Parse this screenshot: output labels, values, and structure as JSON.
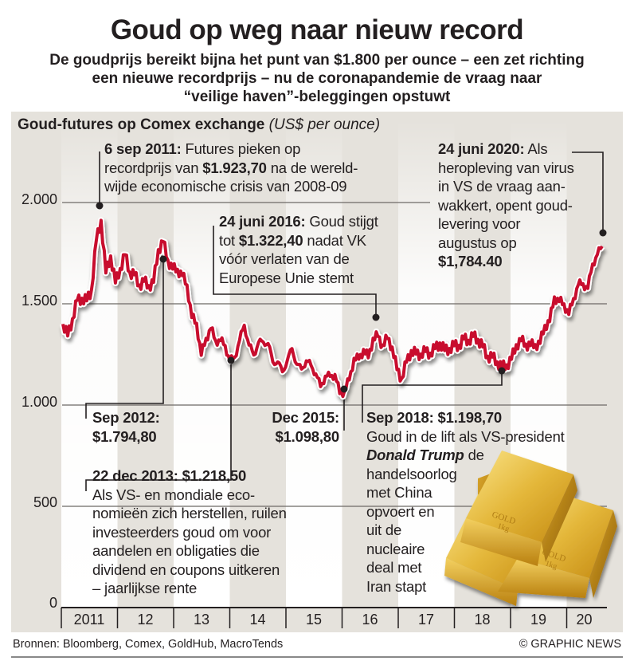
{
  "header": {
    "title": "Goud op weg naar nieuw record",
    "subtitle_lines": [
      "De goudprijs bereikt bijna het punt van $1.800 per ounce – een zet richting",
      "een nieuwe recordprijs – nu de coronapandemie de vraag naar",
      "“veilige haven”-beleggingen opstuwt"
    ]
  },
  "colors": {
    "line": "#c8102e",
    "panel": "#e5e2dc",
    "band": "#ffffff",
    "text": "#231f20"
  },
  "annotations": {
    "peak2011": {
      "bold": "6 sep 2011:",
      "text1": " Futures pieken op",
      "text2a": "recordprijs van ",
      "bold2": "$1.923,70",
      "text2b": " na de wereld-",
      "text3": "wijde economische crisis van 2008-09"
    },
    "brexit2016": {
      "bold": "24 juni 2016:",
      "text1": " Goud stijgt",
      "text2a": "tot ",
      "bold2": "$1.322,40",
      "text2b": " nadat VK",
      "text3": "vóór verlaten van de",
      "text4": "Europese Unie stemt"
    },
    "june2020": {
      "bold": "24 juni 2020:",
      "text1": " Als",
      "lines": [
        "heropleving van virus",
        "in VS de vraag aan-",
        "wakkert, opent goud-",
        "levering voor",
        "augustus op"
      ],
      "bold2": "$1,784.40"
    },
    "sep2012": {
      "line1": "Sep 2012:",
      "line2": "$1.794,80"
    },
    "dec2013": {
      "bold": "22 dec 2013: $1.218,50",
      "lines": [
        "Als VS- en mondiale eco-",
        "nomieën zich herstellen, ruilen",
        "investeerders goud om voor",
        "aandelen en obligaties die",
        "dividend en coupons uitkeren",
        "– jaarlijkse rente"
      ]
    },
    "dec2015": {
      "line1": "Dec 2015:",
      "line2": "$1.098,80"
    },
    "sep2018": {
      "bold": "Sep 2018: $1.198,70",
      "line1": "Goud in de lift als VS-president",
      "italic": "Donald Trump",
      "line2b": " de",
      "lines": [
        "handelsoorlog",
        "met China",
        "opvoert en",
        "uit de",
        "nucleaire",
        "deal met",
        "Iran stapt"
      ]
    }
  },
  "gold_bar_label": [
    "GOLD",
    "1kg"
  ],
  "chart_data": {
    "type": "line",
    "title": "Goud-futures op Comex exchange",
    "unit": "(US$ per ounce)",
    "xlabel": "",
    "ylabel": "",
    "ylim": [
      0,
      2000
    ],
    "y_ticks": [
      {
        "value": 2000,
        "label": "2.000"
      },
      {
        "value": 1500,
        "label": "1.500"
      },
      {
        "value": 1000,
        "label": "1.000"
      },
      {
        "value": 500,
        "label": "500"
      },
      {
        "value": 0,
        "label": "0"
      }
    ],
    "x_ticks": [
      "2011",
      "12",
      "13",
      "14",
      "15",
      "16",
      "17",
      "18",
      "19",
      "20"
    ],
    "start_year": 2011,
    "series": [
      {
        "name": "Goud-futures",
        "monthly_values": [
          1400,
          1360,
          1430,
          1500,
          1520,
          1530,
          1580,
          1800,
          1900,
          1660,
          1750,
          1600,
          1660,
          1740,
          1670,
          1650,
          1580,
          1600,
          1600,
          1620,
          1760,
          1790,
          1720,
          1690,
          1670,
          1620,
          1590,
          1450,
          1410,
          1230,
          1320,
          1390,
          1330,
          1310,
          1280,
          1220,
          1250,
          1320,
          1380,
          1290,
          1260,
          1320,
          1300,
          1290,
          1220,
          1230,
          1160,
          1200,
          1280,
          1220,
          1180,
          1200,
          1190,
          1170,
          1100,
          1130,
          1130,
          1160,
          1070,
          1065,
          1110,
          1230,
          1240,
          1280,
          1220,
          1320,
          1350,
          1310,
          1320,
          1270,
          1180,
          1150,
          1210,
          1250,
          1250,
          1270,
          1270,
          1240,
          1270,
          1320,
          1280,
          1270,
          1280,
          1300,
          1340,
          1320,
          1325,
          1320,
          1300,
          1250,
          1225,
          1200,
          1195,
          1215,
          1220,
          1280,
          1320,
          1320,
          1295,
          1280,
          1300,
          1410,
          1420,
          1520,
          1500,
          1510,
          1460,
          1520,
          1580,
          1600,
          1590,
          1700,
          1730,
          1784
        ]
      }
    ],
    "markers": [
      {
        "label": "6 sep 2011",
        "value": 1923.7
      },
      {
        "label": "Sep 2012",
        "value": 1794.8
      },
      {
        "label": "22 dec 2013",
        "value": 1218.5
      },
      {
        "label": "Dec 2015",
        "value": 1098.8
      },
      {
        "label": "24 juni 2016",
        "value": 1322.4
      },
      {
        "label": "Sep 2018",
        "value": 1198.7
      },
      {
        "label": "24 juni 2020",
        "value": 1784.4
      }
    ],
    "grid": true
  },
  "footer": {
    "sources": "Bronnen: Bloomberg, Comex, GoldHub, MacroTends",
    "credit": "© GRAPHIC NEWS"
  }
}
